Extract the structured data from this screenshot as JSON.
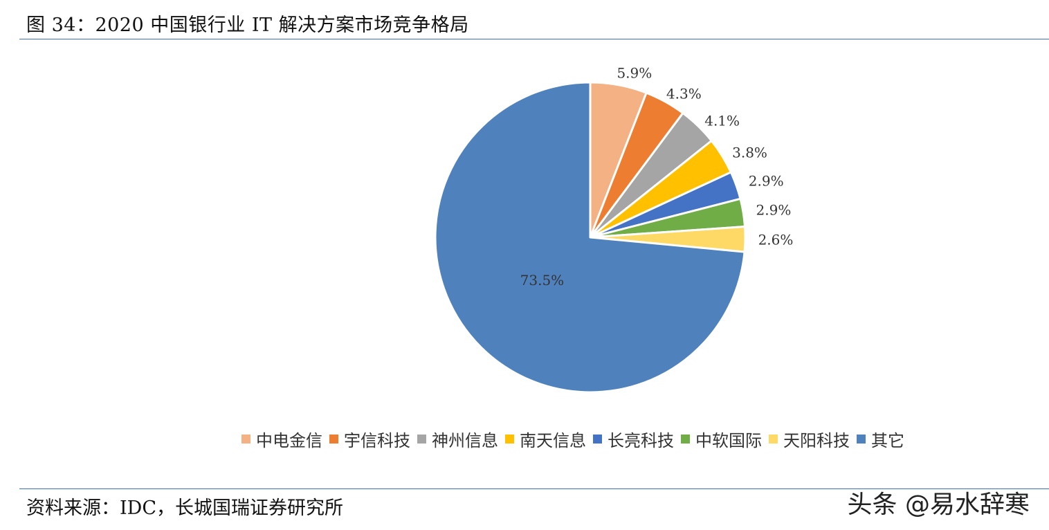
{
  "header": {
    "title": "图 34：2020 中国银行业 IT 解决方案市场竞争格局"
  },
  "footer": {
    "source": "资料来源：IDC，长城国瑞证券研究所",
    "watermark": "头条 @易水辞寒"
  },
  "chart_data": {
    "type": "pie",
    "start_angle_deg": 0,
    "direction": "clockwise",
    "legend_position": "bottom",
    "slices": [
      {
        "name": "中电金信",
        "value": 5.9,
        "label": "5.9%",
        "color": "#F4B183"
      },
      {
        "name": "宇信科技",
        "value": 4.3,
        "label": "4.3%",
        "color": "#ED7D31"
      },
      {
        "name": "神州信息",
        "value": 4.1,
        "label": "4.1%",
        "color": "#A5A5A5"
      },
      {
        "name": "南天信息",
        "value": 3.8,
        "label": "3.8%",
        "color": "#FFC000"
      },
      {
        "name": "长亮科技",
        "value": 2.9,
        "label": "2.9%",
        "color": "#4472C4"
      },
      {
        "name": "中软国际",
        "value": 2.9,
        "label": "2.9%",
        "color": "#70AD47"
      },
      {
        "name": "天阳科技",
        "value": 2.6,
        "label": "2.6%",
        "color": "#FFD966"
      },
      {
        "name": "其它",
        "value": 73.5,
        "label": "73.5%",
        "color": "#4F81BD"
      }
    ]
  }
}
